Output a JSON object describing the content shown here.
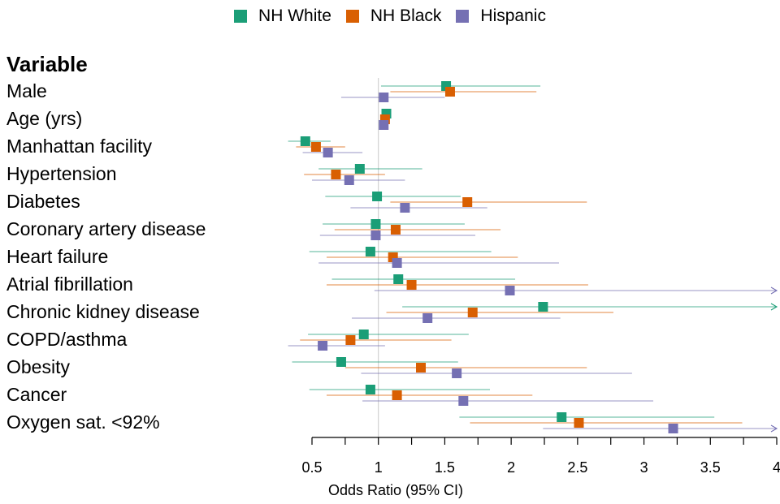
{
  "chart_data": {
    "type": "forest",
    "variable_header": "Variable",
    "xlabel": "Odds Ratio (95% CI)",
    "xlim": [
      0.5,
      4
    ],
    "xticks": [
      "0.5",
      "1",
      "1.5",
      "2",
      "2.5",
      "3",
      "3.5",
      "4"
    ],
    "reference_line": 1,
    "legend_position": "top-center",
    "series": [
      {
        "name": "NH White",
        "color": "#1b9e77"
      },
      {
        "name": "NH Black",
        "color": "#d95f02"
      },
      {
        "name": "Hispanic",
        "color": "#7570b3"
      }
    ],
    "rows": [
      {
        "label": "Male",
        "or": [
          1.51,
          1.54,
          1.04
        ],
        "ci": [
          [
            1.02,
            2.22
          ],
          [
            1.09,
            2.19
          ],
          [
            0.72,
            1.5
          ]
        ]
      },
      {
        "label": "Age (yrs)",
        "or": [
          1.06,
          1.05,
          1.04
        ],
        "ci": [
          [
            1.04,
            1.08
          ],
          [
            1.03,
            1.07
          ],
          [
            1.02,
            1.06
          ]
        ]
      },
      {
        "label": "Manhattan facility",
        "or": [
          0.45,
          0.53,
          0.62
        ],
        "ci": [
          [
            0.32,
            0.64
          ],
          [
            0.38,
            0.75
          ],
          [
            0.43,
            0.88
          ]
        ]
      },
      {
        "label": "Hypertension",
        "or": [
          0.86,
          0.68,
          0.78
        ],
        "ci": [
          [
            0.55,
            1.33
          ],
          [
            0.44,
            1.05
          ],
          [
            0.5,
            1.2
          ]
        ]
      },
      {
        "label": "Diabetes",
        "or": [
          0.99,
          1.67,
          1.2
        ],
        "ci": [
          [
            0.6,
            1.62
          ],
          [
            1.09,
            2.57
          ],
          [
            0.79,
            1.82
          ]
        ]
      },
      {
        "label": "Coronary artery disease",
        "or": [
          0.98,
          1.13,
          0.98
        ],
        "ci": [
          [
            0.58,
            1.65
          ],
          [
            0.67,
            1.92
          ],
          [
            0.56,
            1.73
          ]
        ]
      },
      {
        "label": "Heart failure",
        "or": [
          0.94,
          1.11,
          1.14
        ],
        "ci": [
          [
            0.48,
            1.85
          ],
          [
            0.61,
            2.05
          ],
          [
            0.55,
            2.36
          ]
        ]
      },
      {
        "label": "Atrial fibrillation",
        "or": [
          1.15,
          1.25,
          1.99
        ],
        "ci": [
          [
            0.65,
            2.03
          ],
          [
            0.61,
            2.58
          ],
          [
            0.97,
            4.0
          ]
        ],
        "arrow": [
          false,
          false,
          true
        ]
      },
      {
        "label": "Chronic kidney disease",
        "or": [
          2.24,
          1.71,
          1.37
        ],
        "ci": [
          [
            1.18,
            4.0
          ],
          [
            1.06,
            2.77
          ],
          [
            0.8,
            2.37
          ]
        ],
        "arrow": [
          true,
          false,
          false
        ]
      },
      {
        "label": "COPD/asthma",
        "or": [
          0.89,
          0.79,
          0.58
        ],
        "ci": [
          [
            0.47,
            1.68
          ],
          [
            0.41,
            1.55
          ],
          [
            0.32,
            1.05
          ]
        ]
      },
      {
        "label": "Obesity",
        "or": [
          0.72,
          1.32,
          1.59
        ],
        "ci": [
          [
            0.35,
            1.6
          ],
          [
            0.75,
            2.57
          ],
          [
            0.87,
            2.91
          ]
        ]
      },
      {
        "label": "Cancer",
        "or": [
          0.94,
          1.14,
          1.64
        ],
        "ci": [
          [
            0.48,
            1.84
          ],
          [
            0.61,
            2.16
          ],
          [
            0.88,
            3.07
          ]
        ]
      },
      {
        "label": "Oxygen sat. <92%",
        "or": [
          2.38,
          2.51,
          3.22
        ],
        "ci": [
          [
            1.61,
            3.53
          ],
          [
            1.69,
            3.74
          ],
          [
            2.24,
            4.0
          ]
        ],
        "arrow": [
          false,
          false,
          true
        ]
      }
    ]
  }
}
